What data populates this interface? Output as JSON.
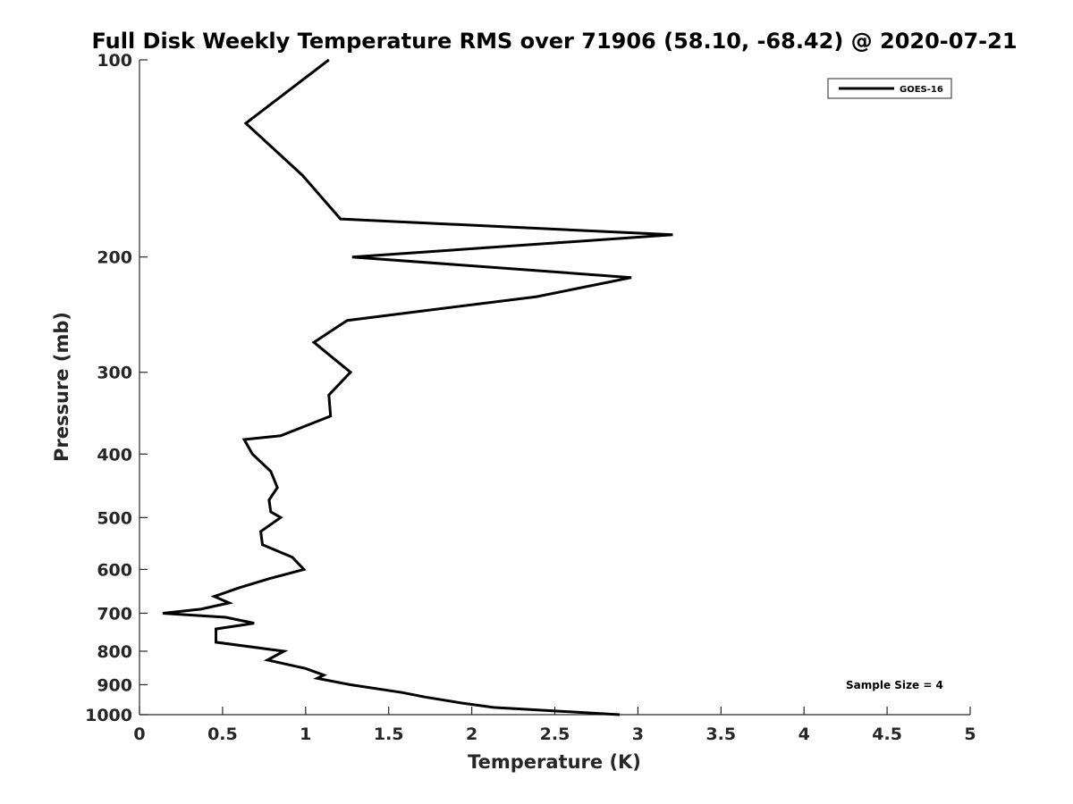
{
  "chart_data": {
    "type": "line",
    "title": "Full Disk Weekly Temperature RMS over 71906 (58.10, -68.42) @ 2020-07-21",
    "xlabel": "Temperature (K)",
    "ylabel": "Pressure (mb)",
    "xlim": [
      0,
      5
    ],
    "ylim": [
      100,
      1000
    ],
    "y_scale": "log",
    "y_direction": "reversed",
    "x_ticks": [
      "0",
      "0.5",
      "1",
      "1.5",
      "2",
      "2.5",
      "3",
      "3.5",
      "4",
      "4.5",
      "5"
    ],
    "y_ticks": [
      "100",
      "200",
      "300",
      "400",
      "500",
      "600",
      "700",
      "800",
      "900",
      "1000"
    ],
    "grid": false,
    "legend": {
      "position": "top-right",
      "entries": [
        "GOES-16"
      ]
    },
    "annotation": "Sample Size = 4",
    "colors": {
      "line": "#000000",
      "axis": "#262626"
    },
    "series": [
      {
        "name": "GOES-16",
        "points": [
          [
            1.14,
            100
          ],
          [
            0.64,
            125
          ],
          [
            0.98,
            150
          ],
          [
            1.21,
            175
          ],
          [
            3.21,
            185
          ],
          [
            1.28,
            200
          ],
          [
            2.96,
            215
          ],
          [
            2.39,
            230
          ],
          [
            1.25,
            250
          ],
          [
            1.05,
            270
          ],
          [
            1.27,
            300
          ],
          [
            1.14,
            325
          ],
          [
            1.15,
            350
          ],
          [
            0.85,
            375
          ],
          [
            0.63,
            380
          ],
          [
            0.68,
            400
          ],
          [
            0.79,
            425
          ],
          [
            0.83,
            450
          ],
          [
            0.78,
            470
          ],
          [
            0.79,
            490
          ],
          [
            0.85,
            500
          ],
          [
            0.73,
            525
          ],
          [
            0.74,
            550
          ],
          [
            0.92,
            575
          ],
          [
            0.99,
            600
          ],
          [
            0.78,
            620
          ],
          [
            0.6,
            640
          ],
          [
            0.45,
            660
          ],
          [
            0.54,
            675
          ],
          [
            0.37,
            690
          ],
          [
            0.14,
            700
          ],
          [
            0.52,
            710
          ],
          [
            0.69,
            725
          ],
          [
            0.46,
            740
          ],
          [
            0.46,
            775
          ],
          [
            0.87,
            800
          ],
          [
            0.77,
            825
          ],
          [
            1.0,
            850
          ],
          [
            1.11,
            870
          ],
          [
            1.07,
            880
          ],
          [
            1.27,
            900
          ],
          [
            1.58,
            925
          ],
          [
            1.72,
            940
          ],
          [
            1.94,
            960
          ],
          [
            2.13,
            975
          ],
          [
            2.89,
            1000
          ]
        ]
      }
    ]
  }
}
